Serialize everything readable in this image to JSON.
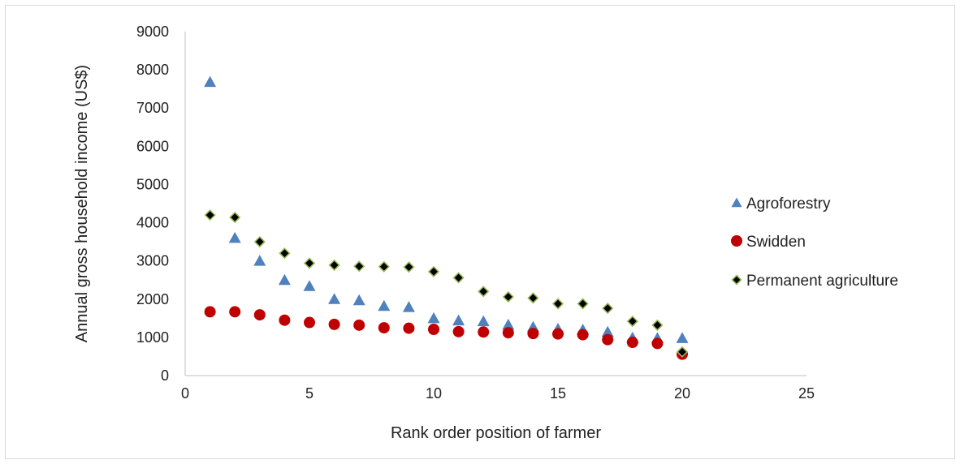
{
  "chart_data": {
    "type": "scatter",
    "title": "",
    "xlabel": "Rank order position of farmer",
    "ylabel": "Annual gross household income (US$)",
    "xlim": [
      0,
      25
    ],
    "ylim": [
      0,
      9000
    ],
    "xticks": [
      0,
      5,
      10,
      15,
      20,
      25
    ],
    "yticks": [
      0,
      1000,
      2000,
      3000,
      4000,
      5000,
      6000,
      7000,
      8000,
      9000
    ],
    "grid": false,
    "legend_position": "right",
    "series": [
      {
        "name": "Agroforestry",
        "marker": "triangle",
        "color": "#4f81bd",
        "x": [
          1,
          2,
          3,
          4,
          5,
          6,
          7,
          8,
          9,
          10,
          11,
          12,
          13,
          14,
          15,
          16,
          17,
          18,
          19,
          20
        ],
        "y": [
          7680,
          3600,
          3000,
          2500,
          2340,
          2000,
          1970,
          1820,
          1790,
          1500,
          1440,
          1420,
          1330,
          1270,
          1220,
          1200,
          1140,
          990,
          980,
          980
        ]
      },
      {
        "name": "Swidden",
        "marker": "circle",
        "color": "#c00000",
        "x": [
          1,
          2,
          3,
          4,
          5,
          6,
          7,
          8,
          9,
          10,
          11,
          12,
          13,
          14,
          15,
          16,
          17,
          18,
          19,
          20
        ],
        "y": [
          1670,
          1670,
          1590,
          1450,
          1390,
          1340,
          1320,
          1250,
          1240,
          1210,
          1150,
          1140,
          1120,
          1100,
          1090,
          1070,
          940,
          870,
          840,
          560
        ]
      },
      {
        "name": "Permanent agriculture",
        "marker": "diamond",
        "color": "#000000",
        "edge_color": "#9bbb59",
        "x": [
          1,
          2,
          3,
          4,
          5,
          6,
          7,
          8,
          9,
          10,
          11,
          12,
          13,
          14,
          15,
          16,
          17,
          18,
          19,
          20
        ],
        "y": [
          4200,
          4140,
          3500,
          3200,
          2940,
          2890,
          2860,
          2850,
          2840,
          2720,
          2560,
          2200,
          2060,
          2030,
          1880,
          1880,
          1760,
          1420,
          1320,
          620
        ]
      }
    ]
  }
}
